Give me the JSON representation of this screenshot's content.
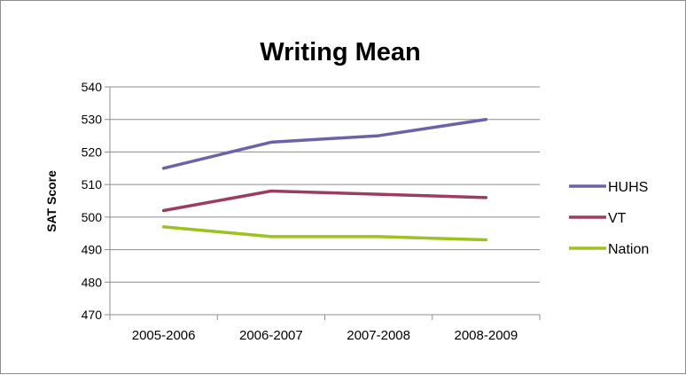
{
  "chart_data": {
    "type": "line",
    "title": "Writing Mean",
    "ylabel": "SAT Score",
    "xlabel": "",
    "categories": [
      "2005-2006",
      "2006-2007",
      "2007-2008",
      "2008-2009"
    ],
    "ylim": [
      470,
      540
    ],
    "yticks": [
      470,
      480,
      490,
      500,
      510,
      520,
      530,
      540
    ],
    "grid": true,
    "legend_position": "right",
    "series": [
      {
        "name": "HUHS",
        "values": [
          515,
          523,
          525,
          530
        ],
        "color": "#6b63a8"
      },
      {
        "name": "VT",
        "values": [
          502,
          508,
          507,
          506
        ],
        "color": "#9b3d63"
      },
      {
        "name": "Nation",
        "values": [
          497,
          494,
          494,
          493
        ],
        "color": "#9bc31c"
      }
    ]
  }
}
